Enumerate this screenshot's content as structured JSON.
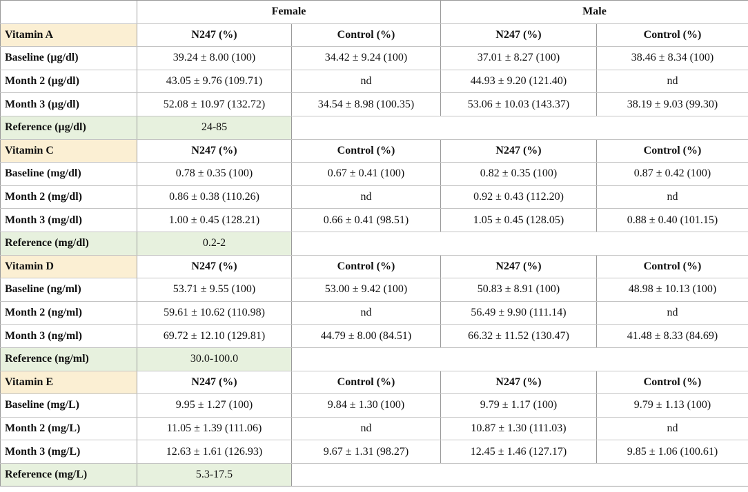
{
  "header": {
    "female": "Female",
    "male": "Male"
  },
  "sections": [
    {
      "vitamin": "Vitamin A",
      "col_headers": [
        "N247 (%)",
        "Control (%)",
        "N247 (%)",
        "Control (%)"
      ],
      "rows": [
        {
          "label": "Baseline (µg/dl)",
          "cells": [
            "39.24 ± 8.00 (100)",
            "34.42 ± 9.24 (100)",
            "37.01 ± 8.27 (100)",
            "38.46 ± 8.34 (100)"
          ]
        },
        {
          "label": "Month 2 (µg/dl)",
          "cells": [
            "43.05 ± 9.76 (109.71)",
            "nd",
            "44.93 ± 9.20 (121.40)",
            "nd"
          ]
        },
        {
          "label": "Month 3 (µg/dl)",
          "cells": [
            "52.08 ± 10.97 (132.72)",
            "34.54 ± 8.98 (100.35)",
            "53.06 ± 10.03 (143.37)",
            "38.19 ± 9.03 (99.30)"
          ]
        }
      ],
      "reference": {
        "label": "Reference (µg/dl)",
        "value": "24-85"
      }
    },
    {
      "vitamin": "Vitamin C",
      "col_headers": [
        "N247 (%)",
        "Control (%)",
        "N247 (%)",
        "Control (%)"
      ],
      "rows": [
        {
          "label": "Baseline (mg/dl)",
          "cells": [
            "0.78 ± 0.35 (100)",
            "0.67 ± 0.41 (100)",
            "0.82 ± 0.35 (100)",
            "0.87 ± 0.42 (100)"
          ]
        },
        {
          "label": "Month 2 (mg/dl)",
          "cells": [
            "0.86 ± 0.38 (110.26)",
            "nd",
            "0.92 ± 0.43 (112.20)",
            "nd"
          ]
        },
        {
          "label": "Month 3 (mg/dl)",
          "cells": [
            "1.00 ± 0.45 (128.21)",
            "0.66 ± 0.41 (98.51)",
            "1.05 ± 0.45 (128.05)",
            "0.88 ± 0.40 (101.15)"
          ]
        }
      ],
      "reference": {
        "label": "Reference (mg/dl)",
        "value": "0.2-2"
      }
    },
    {
      "vitamin": "Vitamin D",
      "col_headers": [
        "N247 (%)",
        "Control (%)",
        "N247 (%)",
        "Control (%)"
      ],
      "rows": [
        {
          "label": "Baseline (ng/ml)",
          "cells": [
            "53.71 ± 9.55 (100)",
            "53.00 ± 9.42 (100)",
            "50.83 ± 8.91 (100)",
            "48.98 ± 10.13 (100)"
          ]
        },
        {
          "label": "Month 2 (ng/ml)",
          "cells": [
            "59.61 ± 10.62 (110.98)",
            "nd",
            "56.49 ± 9.90 (111.14)",
            "nd"
          ]
        },
        {
          "label": "Month 3 (ng/ml)",
          "cells": [
            "69.72 ± 12.10 (129.81)",
            "44.79 ± 8.00 (84.51)",
            "66.32 ± 11.52 (130.47)",
            "41.48 ± 8.33 (84.69)"
          ]
        }
      ],
      "reference": {
        "label": "Reference (ng/ml)",
        "value": "30.0-100.0"
      }
    },
    {
      "vitamin": "Vitamin E",
      "col_headers": [
        "N247 (%)",
        "Control (%)",
        "N247 (%)",
        "Control (%)"
      ],
      "rows": [
        {
          "label": "Baseline (mg/L)",
          "cells": [
            "9.95 ± 1.27 (100)",
            "9.84 ± 1.30 (100)",
            "9.79 ± 1.17 (100)",
            "9.79 ± 1.13 (100)"
          ]
        },
        {
          "label": "Month 2 (mg/L)",
          "cells": [
            "11.05 ± 1.39 (111.06)",
            "nd",
            "10.87 ± 1.30 (111.03)",
            "nd"
          ]
        },
        {
          "label": "Month 3 (mg/L)",
          "cells": [
            "12.63 ± 1.61 (126.93)",
            "9.67 ± 1.31 (98.27)",
            "12.45 ± 1.46 (127.17)",
            "9.85 ± 1.06 (100.61)"
          ]
        }
      ],
      "reference": {
        "label": "Reference (mg/L)",
        "value": "5.3-17.5"
      }
    }
  ],
  "colors": {
    "vitamin_header_bg": "#fbefd3",
    "reference_bg": "#e7f1de"
  }
}
